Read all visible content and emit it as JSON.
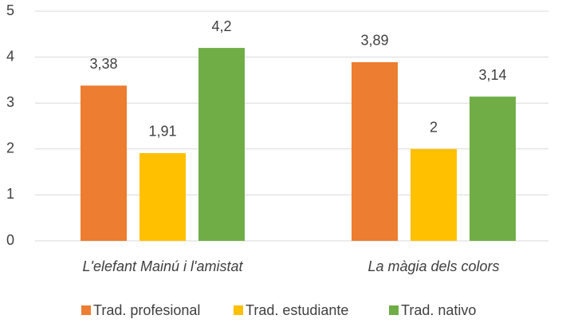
{
  "chart_data": {
    "type": "bar",
    "categories": [
      "L'elefant Mainú i l'amistat",
      "La màgia dels colors"
    ],
    "series": [
      {
        "name": "Trad. profesional",
        "color": "#ED7D31",
        "values": [
          3.38,
          3.89
        ],
        "value_labels": [
          "3,38",
          "3,89"
        ]
      },
      {
        "name": "Trad. estudiante",
        "color": "#FFC000",
        "values": [
          1.91,
          2
        ],
        "value_labels": [
          "1,91",
          "2"
        ]
      },
      {
        "name": "Trad. nativo",
        "color": "#70AD47",
        "values": [
          4.2,
          3.14
        ],
        "value_labels": [
          "4,2",
          "3,14"
        ]
      }
    ],
    "ylim": [
      0,
      5
    ],
    "yticks": [
      0,
      1,
      2,
      3,
      4,
      5
    ],
    "grid": true,
    "legend": "bottom"
  }
}
